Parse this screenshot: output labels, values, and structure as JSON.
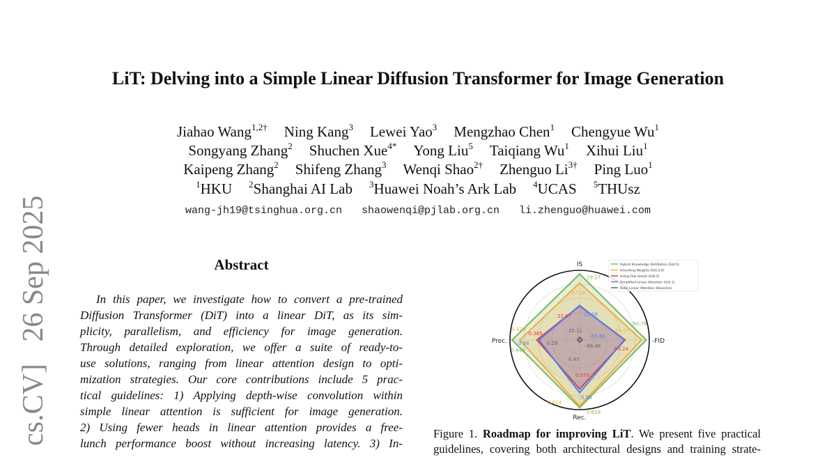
{
  "title": "LiT: Delving into a Simple Linear Diffusion Transformer for Image Generation",
  "authors": [
    [
      {
        "name": "Jiahao Wang",
        "sup": "1,2†"
      },
      {
        "name": "Ning Kang",
        "sup": "3"
      },
      {
        "name": "Lewei Yao",
        "sup": "3"
      },
      {
        "name": "Mengzhao Chen",
        "sup": "1"
      },
      {
        "name": "Chengyue Wu",
        "sup": "1"
      }
    ],
    [
      {
        "name": "Songyang Zhang",
        "sup": "2"
      },
      {
        "name": "Shuchen Xue",
        "sup": "4*"
      },
      {
        "name": "Yong Liu",
        "sup": "5"
      },
      {
        "name": "Taiqiang Wu",
        "sup": "1"
      },
      {
        "name": "Xihui Liu",
        "sup": "1"
      }
    ],
    [
      {
        "name": "Kaipeng Zhang",
        "sup": "2"
      },
      {
        "name": "Shifeng Zhang",
        "sup": "3"
      },
      {
        "name": "Wenqi Shao",
        "sup": "2†"
      },
      {
        "name": "Zhenguo Li",
        "sup": "3†"
      },
      {
        "name": "Ping Luo",
        "sup": "1"
      }
    ]
  ],
  "affiliations": [
    {
      "sup": "1",
      "name": "HKU"
    },
    {
      "sup": "2",
      "name": "Shanghai AI Lab"
    },
    {
      "sup": "3",
      "name": "Huawei Noah’s Ark Lab"
    },
    {
      "sup": "4",
      "name": "UCAS"
    },
    {
      "sup": "5",
      "name": "THUsz"
    }
  ],
  "emails": [
    "wang-jh19@tsinghua.org.cn",
    "shaowenqi@pjlab.org.cn",
    "li.zhenguo@huawei.com"
  ],
  "arxiv_stamp": "cs.CV]   26 Sep 2025",
  "abstract": {
    "heading": "Abstract",
    "lines": [
      "In this paper, we investigate how to convert a pre-trained",
      "Diffusion Transformer (DiT) into a linear DiT, as its sim-",
      "plicity, parallelism, and efficiency for image generation.",
      "Through detailed exploration, we offer a suite of ready-to-",
      "use solutions, ranging from linear attention design to opti-",
      "mization strategies. Our core contributions include 5 prac-",
      "tical guidelines: 1) Applying depth-wise convolution within",
      "simple linear attention is sufficient for image generation.",
      "2) Using fewer heads in linear attention provides a free-",
      "lunch performance boost without increasing latency. 3) In-"
    ]
  },
  "caption": {
    "prefix": "Figure 1. ",
    "bold": "Roadmap for improving LiT",
    "line1_rest": ". We present five practical",
    "line2": "guidelines, covering both architectural designs and training strate-"
  },
  "chart_data": {
    "type": "radar",
    "axes": [
      "IS",
      "-FID",
      "Rec.",
      "Prec."
    ],
    "ranges": {
      "IS": [
        14.5,
        30
      ],
      "-FID": [
        -90,
        -49
      ],
      "Rec.": [
        0.445,
        0.623
      ],
      "Prec.": [
        0.285,
        0.448
      ]
    },
    "legend_position": "top-right",
    "grid": true,
    "series": [
      {
        "name": "Hybrid Knowledge Distillation (Gdl.5)",
        "color": "#7ab55c",
        "values": {
          "IS": 29.17,
          "-FID": -50.79,
          "Rec.": 0.618,
          "Prec.": 0.443
        },
        "labels": {
          "IS": "29.17",
          "-FID": "-50.79",
          "Rec.": "0.618",
          "Prec.": "0.443"
        }
      },
      {
        "name": "Inheriting Weights (Gdl.3,4)",
        "color": "#f2a93b",
        "values": {
          "IS": 27.18,
          "-FID": -53.57,
          "Rec.": 0.614,
          "Prec.": 0.425
        },
        "labels": {
          "IS": "27.18",
          "-FID": "-53.57",
          "Rec.": "0.614",
          "Prec.": "0.425"
        }
      },
      {
        "name": "Using Few Heads (Gdl.2)",
        "color": "#e8383d",
        "values": {
          "IS": 22.07,
          "-FID": -63.24,
          "Rec.": 0.57,
          "Prec.": 0.385
        },
        "labels": {
          "IS": "22.07",
          "-FID": "-63.24",
          "Rec.": "0.570",
          "Prec.": "0.385"
        }
      },
      {
        "name": "Simplified Linear Attention (Gdl.1)",
        "color": "#5080ee",
        "values": {
          "IS": 22.18,
          "-FID": -63.66,
          "Rec.": 0.58,
          "Prec.": 0.38
        },
        "labels": {
          "IS": "22.18",
          "-FID": "-63.66",
          "Rec.": "0.58",
          "Prec.": "0.38"
        }
      },
      {
        "name": "ReLU Linear Attention (Baseline)",
        "color": "#666666",
        "values": {
          "IS": 15.11,
          "-FID": -88.46,
          "Rec.": 0.45,
          "Prec.": 0.29
        },
        "labels": {
          "IS": "15.11",
          "-FID": "-88.46",
          "Rec.": "0.45",
          "Prec.": "0.29"
        }
      }
    ]
  }
}
